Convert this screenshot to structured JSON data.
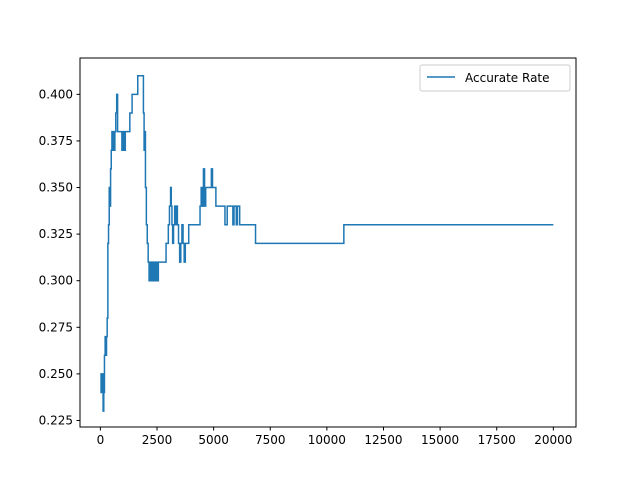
{
  "chart_data": {
    "type": "line",
    "title": "",
    "xlabel": "",
    "ylabel": "",
    "xlim": [
      -900,
      21000
    ],
    "ylim": [
      0.2215,
      0.4195
    ],
    "x_ticks": [
      0,
      2500,
      5000,
      7500,
      10000,
      12500,
      15000,
      17500,
      20000
    ],
    "x_tick_labels": [
      "0",
      "2500",
      "5000",
      "7500",
      "10000",
      "12500",
      "15000",
      "17500",
      "20000"
    ],
    "y_ticks": [
      0.225,
      0.25,
      0.275,
      0.3,
      0.325,
      0.35,
      0.375,
      0.4
    ],
    "y_tick_labels": [
      "0.225",
      "0.250",
      "0.275",
      "0.300",
      "0.325",
      "0.350",
      "0.375",
      "0.400"
    ],
    "grid": false,
    "legend": {
      "position": "top-right",
      "entries": [
        "Accurate Rate"
      ]
    },
    "series": [
      {
        "name": "Accurate Rate",
        "color": "#1f77b4",
        "step": true,
        "points": [
          [
            0,
            0.24
          ],
          [
            30,
            0.25
          ],
          [
            60,
            0.24
          ],
          [
            90,
            0.25
          ],
          [
            120,
            0.23
          ],
          [
            150,
            0.24
          ],
          [
            180,
            0.26
          ],
          [
            210,
            0.27
          ],
          [
            240,
            0.26
          ],
          [
            270,
            0.27
          ],
          [
            300,
            0.28
          ],
          [
            330,
            0.32
          ],
          [
            360,
            0.33
          ],
          [
            390,
            0.35
          ],
          [
            420,
            0.34
          ],
          [
            450,
            0.36
          ],
          [
            480,
            0.37
          ],
          [
            510,
            0.38
          ],
          [
            540,
            0.37
          ],
          [
            570,
            0.38
          ],
          [
            600,
            0.37
          ],
          [
            640,
            0.38
          ],
          [
            680,
            0.39
          ],
          [
            720,
            0.4
          ],
          [
            760,
            0.38
          ],
          [
            820,
            0.38
          ],
          [
            880,
            0.38
          ],
          [
            950,
            0.37
          ],
          [
            1000,
            0.38
          ],
          [
            1050,
            0.37
          ],
          [
            1100,
            0.38
          ],
          [
            1200,
            0.38
          ],
          [
            1300,
            0.39
          ],
          [
            1400,
            0.4
          ],
          [
            1500,
            0.4
          ],
          [
            1600,
            0.4
          ],
          [
            1650,
            0.41
          ],
          [
            1700,
            0.41
          ],
          [
            1800,
            0.41
          ],
          [
            1870,
            0.41
          ],
          [
            1900,
            0.39
          ],
          [
            1930,
            0.37
          ],
          [
            1960,
            0.38
          ],
          [
            1990,
            0.35
          ],
          [
            2030,
            0.33
          ],
          [
            2070,
            0.32
          ],
          [
            2110,
            0.31
          ],
          [
            2150,
            0.3
          ],
          [
            2200,
            0.31
          ],
          [
            2260,
            0.3
          ],
          [
            2320,
            0.31
          ],
          [
            2380,
            0.3
          ],
          [
            2440,
            0.31
          ],
          [
            2500,
            0.3
          ],
          [
            2560,
            0.31
          ],
          [
            2700,
            0.31
          ],
          [
            2850,
            0.31
          ],
          [
            2900,
            0.32
          ],
          [
            2950,
            0.32
          ],
          [
            3000,
            0.33
          ],
          [
            3050,
            0.34
          ],
          [
            3080,
            0.34
          ],
          [
            3100,
            0.35
          ],
          [
            3130,
            0.34
          ],
          [
            3160,
            0.33
          ],
          [
            3190,
            0.32
          ],
          [
            3230,
            0.33
          ],
          [
            3280,
            0.34
          ],
          [
            3320,
            0.33
          ],
          [
            3360,
            0.34
          ],
          [
            3400,
            0.33
          ],
          [
            3450,
            0.32
          ],
          [
            3500,
            0.31
          ],
          [
            3550,
            0.32
          ],
          [
            3600,
            0.33
          ],
          [
            3650,
            0.32
          ],
          [
            3700,
            0.31
          ],
          [
            3750,
            0.32
          ],
          [
            3800,
            0.32
          ],
          [
            3900,
            0.33
          ],
          [
            4000,
            0.33
          ],
          [
            4200,
            0.33
          ],
          [
            4400,
            0.34
          ],
          [
            4450,
            0.35
          ],
          [
            4500,
            0.34
          ],
          [
            4550,
            0.36
          ],
          [
            4600,
            0.34
          ],
          [
            4650,
            0.35
          ],
          [
            4700,
            0.35
          ],
          [
            4800,
            0.35
          ],
          [
            4900,
            0.36
          ],
          [
            4950,
            0.35
          ],
          [
            5000,
            0.35
          ],
          [
            5100,
            0.34
          ],
          [
            5200,
            0.34
          ],
          [
            5400,
            0.34
          ],
          [
            5500,
            0.33
          ],
          [
            5600,
            0.34
          ],
          [
            5800,
            0.34
          ],
          [
            5850,
            0.33
          ],
          [
            5900,
            0.34
          ],
          [
            6000,
            0.33
          ],
          [
            6050,
            0.34
          ],
          [
            6100,
            0.34
          ],
          [
            6150,
            0.33
          ],
          [
            6300,
            0.33
          ],
          [
            6600,
            0.33
          ],
          [
            6800,
            0.33
          ],
          [
            6850,
            0.32
          ],
          [
            7500,
            0.32
          ],
          [
            8500,
            0.32
          ],
          [
            9500,
            0.32
          ],
          [
            10700,
            0.32
          ],
          [
            10750,
            0.33
          ],
          [
            12000,
            0.33
          ],
          [
            15000,
            0.33
          ],
          [
            18000,
            0.33
          ],
          [
            20000,
            0.33
          ]
        ]
      }
    ]
  }
}
